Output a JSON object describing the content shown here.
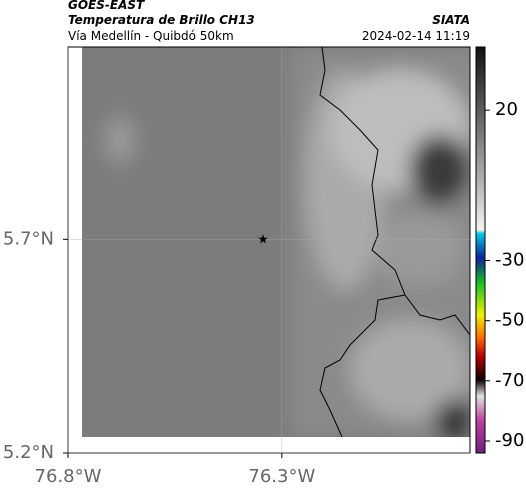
{
  "header": {
    "satellite": "GOES-EAST",
    "title": "Temperatura de Brillo CH13",
    "source": "SIATA",
    "subtitle": "Vía Medellín - Quibdó 50km",
    "timestamp": "2024-02-14 11:19"
  },
  "map": {
    "xlim": [
      -76.8,
      -75.86
    ],
    "ylim": [
      5.2,
      6.15
    ],
    "xticks": [
      {
        "value": -76.8,
        "label": "76.8°W"
      },
      {
        "value": -76.3,
        "label": "76.3°W"
      }
    ],
    "yticks": [
      {
        "value": 5.7,
        "label": "5.7°N"
      },
      {
        "value": 5.2,
        "label": "5.2°N"
      }
    ],
    "marker": {
      "lon": -76.344,
      "lat": 5.7
    }
  },
  "colorbar": {
    "lim": [
      -94,
      41
    ],
    "ticks": [
      20,
      -30,
      -50,
      -70,
      -90
    ]
  }
}
